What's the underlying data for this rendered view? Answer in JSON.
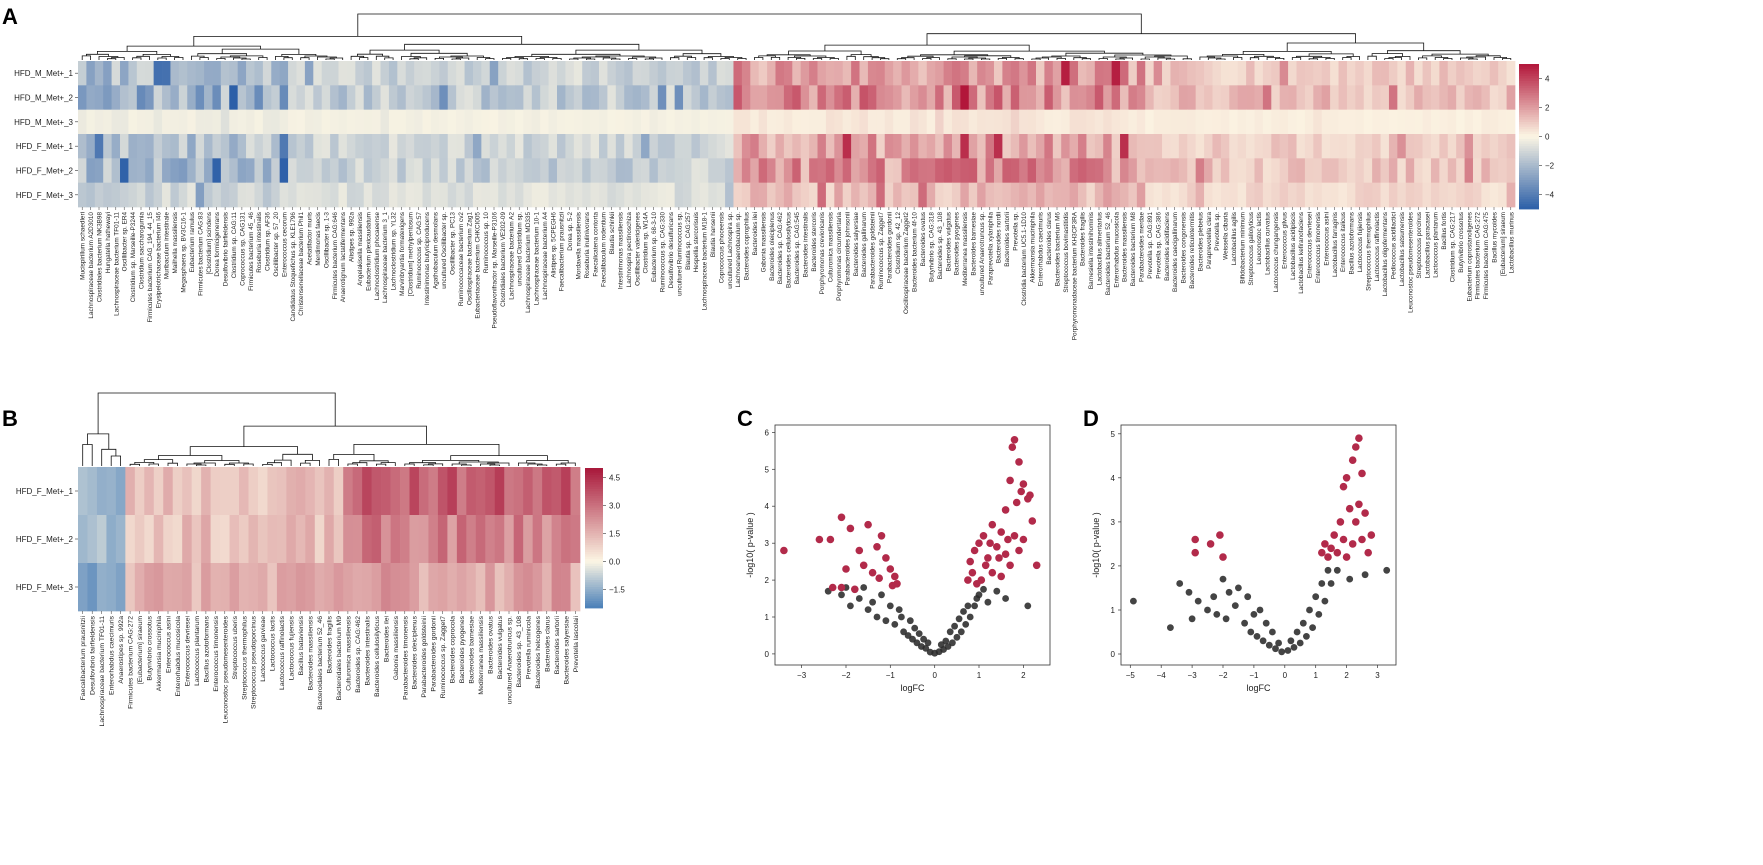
{
  "figure": {
    "panel_labels": [
      "A",
      "B",
      "C",
      "D"
    ]
  },
  "chart_data": [
    {
      "panel": "A",
      "type": "heatmap",
      "rows": [
        "HFD_M_Met+_1",
        "HFD_M_Met+_2",
        "HFD_M_Met+_3",
        "HFD_F_Met+_1",
        "HFD_F_Met+_2",
        "HFD_F_Met+_3"
      ],
      "columns": [
        "Mucispirillum schaedleri",
        "Lachnospiraceae bacterium A2D3010",
        "Clostridiales bacterium NK3B98",
        "Hungatella hathewayi",
        "Lachnospiraceae bacterium TF01-11",
        "Oscillibacter sp. ER4",
        "Clostridium sp. Marseille-P3244",
        "Clostridium saccharogumia",
        "Firmicutes bacterium CAG_194_44_15",
        "Erysipelotrichaceae bacterium I46",
        "Muribaculum intestinale",
        "Mailhella massiliensis",
        "Megasphaera sp. BV3C16-1",
        "Eubacterium ramulus",
        "Firmicutes bacterium CAG:83",
        "[Clostridium] scindens",
        "Dorea formicigenerans",
        "Desulfovibrio fairfieldensis",
        "Clostridium sp. CAG:11",
        "Coprococcus sp. CAG131",
        "Firmicutes bacterium 45_46",
        "Roseburia intestinalis",
        "Clostridium sp. AF36",
        "Oscillibacter sp. 57_20",
        "Enterococcus cecorum",
        "Candidatus Stoquefichus sp. KLE1796",
        "Christensenellaceae bacterium Phil1",
        "Acetatifactor muris",
        "Merdimonas faecis",
        "Oscillibacter sp. 1-3",
        "Firmicutes bacterium CAG:646",
        "Anaerotignum lactatifermentans",
        "Alistipes sp. 992a",
        "Angelakisella massiliensis",
        "Eubacterium plexicaudatum",
        "Lachnoclostridium phocaeense",
        "Lachnospiraceae bacterium 3_1",
        "Lachnoclostridium sp. YL32",
        "Marvinbryantia formatexigens",
        "[Clostridium] methylpentosum",
        "Ruminococcus sp. CAG:57",
        "Intestinimonas butyriciproducens",
        "Agathobaculum desmolans",
        "uncultured Oscillibacter sp.",
        "Oscillibacter sp. PC13",
        "Ruminococcaceae bacterium cv2",
        "Oscillospiraceae bacterium Zag1",
        "Eubacteriaceae bacterium CHKCI005",
        "Ruminococcus sp. 10",
        "Pseudoflavonifractor sp. Marseille-P3106",
        "Clostridiales bacterium VE202-09",
        "Lachnospiraceae bacterium A2",
        "uncultured Clostridium sp.",
        "Lachnospiraceae bacterium MD335",
        "Lachnospiraceae bacterium 10-1",
        "Lachnospiraceae bacterium A4",
        "Alistipes sp. 5CPEGH6",
        "Faecalibacterium prausnitzii",
        "Dorea sp. 5-2",
        "Mordavella massiliensis",
        "Roseburia inulinivorans",
        "Faecalicatena contorta",
        "Faecalibaculum rodentium",
        "Blautia schinkii",
        "Intestinimonas massiliensis",
        "Lachnospira pectinoschiza",
        "Oscillibacter valericigenes",
        "Clostridium sp. W14A",
        "Eubacterium sp. 68-3-10",
        "Ruminococcus sp. CAG:330",
        "Desulfovibrio desulfuricans",
        "uncultured Ruminococcus sp.",
        "Blautia sp. CAG:257",
        "Hespellia stercorisuis",
        "Lachnospiraceae bacterium M18-1",
        "Blautia hansenii",
        "Coprococcus phoceensis",
        "uncultured Lachnospira sp.",
        "Lachnoanaerobaculum sp.",
        "Bacteroides coprophilus",
        "Bacteroides ilei",
        "Gabonia massiliensis",
        "Bacteroides oleiciplenus",
        "Bacteroides sp. CAG:462",
        "Bacteroides cellulosilyticus",
        "Bacteroides sp. CAG:545",
        "Bacteroides intestinalis",
        "Bacteroides stercoris",
        "Porphyromonas crevioricanis",
        "Culturomica massiliensis",
        "Porphyromonas circumdentaria",
        "Parabacteroides johnsonii",
        "Bacteroides salyersiae",
        "Bacteroides gallinarum",
        "Parabacteroides goldsteinii",
        "Ruminococcus sp. Zagget7",
        "Parabacteroides gordonii",
        "Clostridium sp. 42_12",
        "Oscillospiraceae bacterium Zagget2",
        "Bacteroides bacterium 4f-10",
        "Bacteroides ovatus",
        "Butyrivibrio sp. CAG:318",
        "Bacteroides sp. 43_108",
        "Bacteroides vulgatus",
        "Bacteroides pyogenes",
        "Mediterranea massiliensis",
        "Bacteroides barnesiae",
        "uncultured Anaerotruncus sp.",
        "Paraprevotella xylaniphila",
        "Bacteroides nordii",
        "Bacteroides sartorii",
        "Prevotella sp.",
        "Clostridia bacterium UC5.1-1D10",
        "Akkermansia muciniphila",
        "Enterorhabdus caecimuris",
        "Bacteroides clarus",
        "Bacteroides bacterium M6",
        "Streptococcus bovimastitidis",
        "Porphyromonadaceae bacterium KH3CP3RA",
        "Bacteroides fragilis",
        "Barnesiella intestinihominis",
        "Lactobacillus alimentarius",
        "Bacteroides bacterium 52_46",
        "Enterorhabdus mucosicola",
        "Bacteroides massiliensis",
        "Bacteroides bacterium M8",
        "Parabacteroides merdae",
        "Prevotella sp. CAG:891",
        "Prevotella sp. CAG:386",
        "Bacteroides acidifaciens",
        "Bacteroides caecigallinarum",
        "Bacteroides congonensis",
        "Bacteroides reticulotermitis",
        "Bacteroides plebeius",
        "Paraprevotella clara",
        "Prevotella sp.",
        "Weissella cibaria",
        "Lactobacillus agilis",
        "Bifidobacterium minimum",
        "Streptococcus gallolyticus",
        "Leuconostoc lactis",
        "Lactobacillus curvatus",
        "Lactococcus chungangensis",
        "Enterococcus gilvus",
        "Lactobacillus acidipiscis",
        "Lactobacillus kefiranofaciens",
        "Enterococcus devriesei",
        "Enterococcus timonensis",
        "Enterococcus asini",
        "Lactobacillus farraginis",
        "Enterococcus italicus",
        "Bacillus azotoformans",
        "Lactococcus fujiensis",
        "Streptococcus thermophilus",
        "Lactococcus raffinolactis",
        "Lactobacillus oligofermentans",
        "Pediococcus acidilactici",
        "Lactobacillus satsumensis",
        "Leuconostoc pseudomesenteroides",
        "Streptococcus porcinus",
        "Lactobacillus paracasei",
        "Lactococcus plantarum",
        "Bacillus fortis",
        "Clostridium sp. CAG:217",
        "Butyrivibrio crossotus",
        "Eubacterium coprostanoligenes",
        "Firmicutes bacterium CAG:272",
        "Firmicutes bacterium CAG:475",
        "Bacillus mycoides",
        "[Eubacterium] siraeum",
        "Lactobacillus murinus"
      ],
      "colorbar": {
        "min": -5,
        "max": 5,
        "ticks": [
          4,
          2,
          0,
          -2,
          -4
        ],
        "low_color": "#2c5fa8",
        "mid_color": "#fcf6e4",
        "high_color": "#b2163a"
      }
    },
    {
      "panel": "B",
      "type": "heatmap",
      "rows": [
        "HFD_F_Met+_1",
        "HFD_F_Met+_2",
        "HFD_F_Met+_3"
      ],
      "columns": [
        "Faecalibacterium prausnitzii",
        "Desulfovibrio fairfieldensis",
        "Lachnospiraceae bacterium TF01-11",
        "Enterorhabdus caecimuris",
        "Anaerostipes sp. 992a",
        "Firmicutes bacterium CAG:272",
        "[Eubacterium] siraeum",
        "Butyrivibrio crossotus",
        "Akkermansia muciniphila",
        "Enterococcus asini",
        "Enterorhabdus mucosicola",
        "Enterococcus devriesei",
        "Lactococcus plantarum",
        "Bacillus azotoformans",
        "Enterococcus timonensis",
        "Leuconostoc pseudomesenteroides",
        "Streptococcus uberis",
        "Streptococcus thermophilus",
        "Streptococcus pseudoporcinus",
        "Lactococcus garvieae",
        "Lactococcus lactis",
        "Lactococcus raffinolactis",
        "Lactococcus fujiensis",
        "Bacillus bataviensis",
        "Bacteroides massiliensis",
        "Bacteroidales bacterium 52_46",
        "Bacteroides fragilis",
        "Bacteroidales bacterium M9",
        "Culturomica massiliensis",
        "Bacteroides sp. CAG:462",
        "Bacteroides intestinalis",
        "Bacteroides cellulosilyticus",
        "Bacteroides ilei",
        "Gabonia massiliensis",
        "Parabacteroides timonensis",
        "Bacteroides oleiciplenus",
        "Parabacteroides goldsteinii",
        "Parabacteroides gordonii",
        "Ruminococcus sp. Zagget7",
        "Bacteroides coprocola",
        "Bacteroides pyogenes",
        "Bacteroides barnesiae",
        "Mediterranea massiliensis",
        "Bacteroides ovatus",
        "Bacteroides vulgatus",
        "uncultured Anaerotruncus sp.",
        "Bacteroides sp. 43_108",
        "Prevotella ruminicola",
        "Bacteroides helcogenes",
        "Bacteroides clarus",
        "Bacteroides sartorii",
        "Bacteroides salyersiae",
        "Prevotella lascolaii"
      ],
      "colorbar": {
        "min": -2.5,
        "max": 5.0,
        "ticks": [
          4.5,
          3.0,
          1.5,
          0.0,
          -1.5
        ],
        "low_color": "#4a7fb8",
        "mid_color": "#fcf6e4",
        "high_color": "#a8173a"
      }
    },
    {
      "panel": "C",
      "type": "scatter",
      "xlabel": "logFC",
      "ylabel": "-log10( p-value )",
      "xlim": [
        -3.6,
        2.6
      ],
      "ylim": [
        -0.3,
        6.2
      ],
      "xticks": [
        -3,
        -2,
        -1,
        0,
        1,
        2
      ],
      "yticks": [
        0,
        1,
        2,
        3,
        4,
        5,
        6
      ],
      "significant_color": "#b22a4a",
      "nonsignificant_color": "#2a2a2a",
      "significant_points": [
        [
          -3.4,
          2.8
        ],
        [
          -2.6,
          3.1
        ],
        [
          -2.35,
          3.1
        ],
        [
          -2.1,
          3.7
        ],
        [
          -1.9,
          3.4
        ],
        [
          -1.5,
          3.5
        ],
        [
          -1.2,
          3.2
        ],
        [
          -1.1,
          2.6
        ],
        [
          -1.0,
          2.3
        ],
        [
          -0.9,
          2.1
        ],
        [
          -1.3,
          2.9
        ],
        [
          -1.6,
          2.4
        ],
        [
          -2.0,
          2.3
        ],
        [
          -2.3,
          1.8
        ],
        [
          -2.1,
          1.8
        ],
        [
          -1.7,
          2.8
        ],
        [
          -1.4,
          2.2
        ],
        [
          -1.25,
          2.05
        ],
        [
          -0.95,
          1.85
        ],
        [
          -0.85,
          1.9
        ],
        [
          -1.8,
          1.75
        ],
        [
          1.8,
          5.8
        ],
        [
          1.75,
          5.6
        ],
        [
          1.9,
          5.2
        ],
        [
          2.0,
          4.6
        ],
        [
          2.1,
          4.2
        ],
        [
          1.85,
          4.1
        ],
        [
          2.2,
          3.6
        ],
        [
          1.6,
          3.9
        ],
        [
          1.5,
          3.3
        ],
        [
          1.3,
          3.5
        ],
        [
          1.1,
          3.2
        ],
        [
          1.0,
          3.0
        ],
        [
          0.9,
          2.8
        ],
        [
          0.8,
          2.5
        ],
        [
          0.85,
          2.2
        ],
        [
          1.2,
          2.6
        ],
        [
          1.4,
          2.9
        ],
        [
          1.6,
          2.7
        ],
        [
          1.7,
          2.4
        ],
        [
          1.9,
          2.8
        ],
        [
          2.0,
          3.1
        ],
        [
          2.3,
          2.4
        ],
        [
          1.5,
          2.1
        ],
        [
          1.05,
          2.0
        ],
        [
          0.95,
          1.9
        ],
        [
          0.75,
          2.0
        ],
        [
          1.3,
          2.2
        ],
        [
          1.45,
          2.6
        ],
        [
          1.25,
          3.0
        ],
        [
          1.15,
          2.4
        ],
        [
          1.65,
          3.1
        ],
        [
          1.8,
          3.2
        ],
        [
          2.15,
          4.3
        ],
        [
          1.95,
          4.4
        ],
        [
          1.7,
          4.7
        ]
      ],
      "nonsignificant_points": [
        [
          -2.4,
          1.7
        ],
        [
          -2.1,
          1.6
        ],
        [
          -1.9,
          1.3
        ],
        [
          -1.7,
          1.5
        ],
        [
          -1.5,
          1.2
        ],
        [
          -1.3,
          1.0
        ],
        [
          -1.1,
          0.9
        ],
        [
          -0.9,
          0.8
        ],
        [
          -0.7,
          0.6
        ],
        [
          -0.6,
          0.5
        ],
        [
          -0.5,
          0.4
        ],
        [
          -0.4,
          0.3
        ],
        [
          -0.3,
          0.2
        ],
        [
          -0.2,
          0.15
        ],
        [
          -0.1,
          0.05
        ],
        [
          0.0,
          0.02
        ],
        [
          0.1,
          0.06
        ],
        [
          0.2,
          0.12
        ],
        [
          0.3,
          0.2
        ],
        [
          0.4,
          0.3
        ],
        [
          0.5,
          0.45
        ],
        [
          0.6,
          0.6
        ],
        [
          0.7,
          0.8
        ],
        [
          0.8,
          1.0
        ],
        [
          0.9,
          1.3
        ],
        [
          1.0,
          1.6
        ],
        [
          1.2,
          1.4
        ],
        [
          1.4,
          1.7
        ],
        [
          1.6,
          1.5
        ],
        [
          2.1,
          1.3
        ],
        [
          -1.6,
          1.8
        ],
        [
          -1.2,
          1.6
        ],
        [
          -0.8,
          1.2
        ],
        [
          -0.55,
          0.9
        ],
        [
          -0.35,
          0.55
        ],
        [
          0.35,
          0.6
        ],
        [
          0.55,
          0.95
        ],
        [
          0.75,
          1.3
        ],
        [
          0.95,
          1.5
        ],
        [
          -1.0,
          1.3
        ],
        [
          -0.75,
          1.0
        ],
        [
          0.65,
          1.15
        ],
        [
          1.1,
          1.75
        ],
        [
          -2.0,
          1.8
        ],
        [
          -1.4,
          1.4
        ],
        [
          0.45,
          0.75
        ],
        [
          -0.45,
          0.7
        ],
        [
          0.25,
          0.35
        ],
        [
          -0.25,
          0.4
        ],
        [
          0.15,
          0.25
        ],
        [
          -0.15,
          0.3
        ]
      ]
    },
    {
      "panel": "D",
      "type": "scatter",
      "xlabel": "logFC",
      "ylabel": "-log10( p-value )",
      "xlim": [
        -5.3,
        3.6
      ],
      "ylim": [
        -0.25,
        5.2
      ],
      "xticks": [
        -5,
        -4,
        -3,
        -2,
        -1,
        0,
        1,
        2,
        3
      ],
      "yticks": [
        0,
        1,
        2,
        3,
        4,
        5
      ],
      "significant_color": "#b22a4a",
      "nonsignificant_color": "#2a2a2a",
      "significant_points": [
        [
          -2.9,
          2.6
        ],
        [
          -2.9,
          2.3
        ],
        [
          -2.4,
          2.5
        ],
        [
          -2.1,
          2.7
        ],
        [
          -2.0,
          2.2
        ],
        [
          2.4,
          4.9
        ],
        [
          2.3,
          4.7
        ],
        [
          2.2,
          4.4
        ],
        [
          2.5,
          4.1
        ],
        [
          2.0,
          4.0
        ],
        [
          1.9,
          3.8
        ],
        [
          2.4,
          3.4
        ],
        [
          2.6,
          3.2
        ],
        [
          2.1,
          3.3
        ],
        [
          1.8,
          3.0
        ],
        [
          1.6,
          2.7
        ],
        [
          1.5,
          2.4
        ],
        [
          1.4,
          2.2
        ],
        [
          1.7,
          2.3
        ],
        [
          2.0,
          2.2
        ],
        [
          2.2,
          2.5
        ],
        [
          2.5,
          2.6
        ],
        [
          2.8,
          2.7
        ],
        [
          1.3,
          2.5
        ],
        [
          1.2,
          2.3
        ],
        [
          2.3,
          3.0
        ],
        [
          2.7,
          2.3
        ],
        [
          1.9,
          2.6
        ]
      ],
      "nonsignificant_points": [
        [
          -4.9,
          1.2
        ],
        [
          -3.7,
          0.6
        ],
        [
          -3.4,
          1.6
        ],
        [
          -3.1,
          1.4
        ],
        [
          -2.8,
          1.2
        ],
        [
          -2.5,
          1.0
        ],
        [
          -2.2,
          0.9
        ],
        [
          -1.9,
          0.8
        ],
        [
          -1.6,
          1.1
        ],
        [
          -1.3,
          0.7
        ],
        [
          -1.1,
          0.5
        ],
        [
          -0.9,
          0.4
        ],
        [
          -0.7,
          0.3
        ],
        [
          -0.5,
          0.2
        ],
        [
          -0.3,
          0.12
        ],
        [
          -0.1,
          0.05
        ],
        [
          0.1,
          0.08
        ],
        [
          0.3,
          0.15
        ],
        [
          0.5,
          0.25
        ],
        [
          0.7,
          0.4
        ],
        [
          0.9,
          0.6
        ],
        [
          1.1,
          0.9
        ],
        [
          1.3,
          1.2
        ],
        [
          1.5,
          1.6
        ],
        [
          1.7,
          1.9
        ],
        [
          2.6,
          1.8
        ],
        [
          3.3,
          1.9
        ],
        [
          -2.0,
          1.7
        ],
        [
          -1.5,
          1.5
        ],
        [
          -1.2,
          1.3
        ],
        [
          -0.8,
          1.0
        ],
        [
          -0.6,
          0.7
        ],
        [
          0.6,
          0.7
        ],
        [
          0.8,
          1.0
        ],
        [
          1.0,
          1.3
        ],
        [
          1.2,
          1.6
        ],
        [
          -1.8,
          1.4
        ],
        [
          -2.3,
          1.3
        ],
        [
          -0.4,
          0.5
        ],
        [
          0.4,
          0.5
        ],
        [
          0.2,
          0.3
        ],
        [
          -0.2,
          0.25
        ],
        [
          1.4,
          1.9
        ],
        [
          -1.0,
          0.9
        ],
        [
          -3.0,
          0.8
        ],
        [
          2.1,
          1.7
        ]
      ]
    }
  ]
}
